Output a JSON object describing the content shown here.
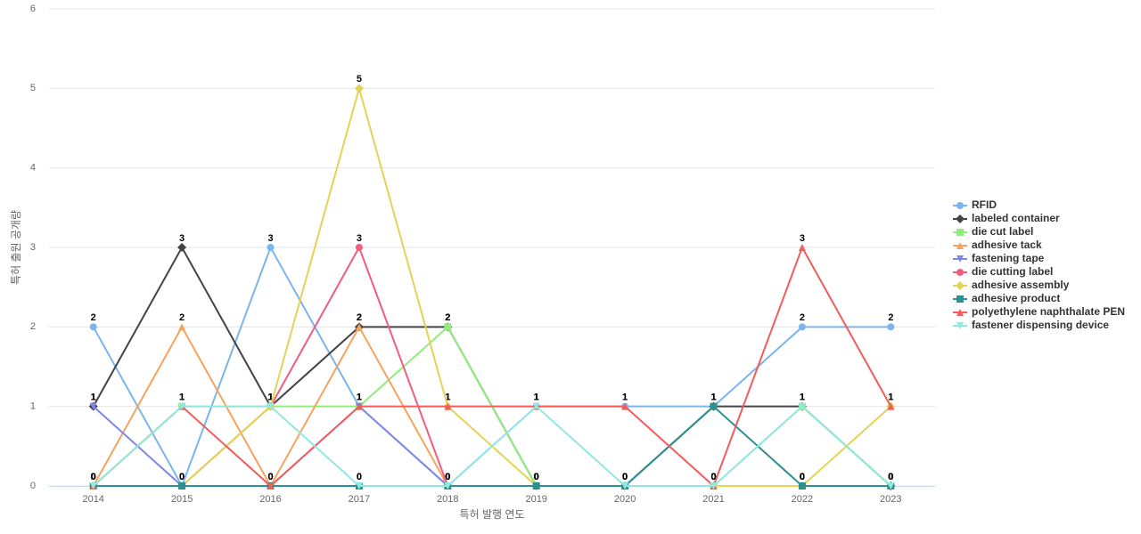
{
  "chart_data": {
    "type": "line",
    "x_label": "특허 발행 연도",
    "y_label": "특허 출원 공개량",
    "categories": [
      "2014",
      "2015",
      "2016",
      "2017",
      "2018",
      "2019",
      "2020",
      "2021",
      "2022",
      "2023"
    ],
    "ylim": [
      0,
      6
    ],
    "yticks": [
      0,
      1,
      2,
      3,
      4,
      5,
      6
    ],
    "grid": true,
    "legend": "right",
    "series": [
      {
        "name": "RFID",
        "color": "#7cb5ec",
        "marker": "circle",
        "values": [
          2,
          0,
          3,
          1,
          0,
          1,
          1,
          1,
          2,
          2
        ]
      },
      {
        "name": "labeled container",
        "color": "#434348",
        "marker": "diamond",
        "values": [
          1,
          3,
          1,
          2,
          2,
          0,
          0,
          1,
          1,
          0
        ]
      },
      {
        "name": "die cut label",
        "color": "#90ed7d",
        "marker": "square",
        "values": [
          0,
          1,
          1,
          1,
          2,
          0,
          0,
          0,
          1,
          0
        ]
      },
      {
        "name": "adhesive tack",
        "color": "#f7a35c",
        "marker": "triangle",
        "values": [
          0,
          2,
          0,
          2,
          0,
          0,
          0,
          0,
          0,
          0
        ]
      },
      {
        "name": "fastening tape",
        "color": "#8085e9",
        "marker": "triangle-down",
        "values": [
          1,
          0,
          0,
          1,
          0,
          0,
          0,
          0,
          0,
          0
        ]
      },
      {
        "name": "die cutting label",
        "color": "#f15c80",
        "marker": "circle",
        "values": [
          0,
          0,
          1,
          3,
          0,
          0,
          0,
          0,
          0,
          0
        ]
      },
      {
        "name": "adhesive assembly",
        "color": "#e4d354",
        "marker": "diamond",
        "values": [
          0,
          0,
          1,
          5,
          1,
          0,
          0,
          0,
          0,
          1
        ]
      },
      {
        "name": "adhesive product",
        "color": "#2b908f",
        "marker": "square",
        "values": [
          0,
          0,
          0,
          0,
          0,
          0,
          0,
          1,
          0,
          0
        ]
      },
      {
        "name": "polyethylene naphthalate PEN",
        "color": "#f45b5b",
        "marker": "triangle",
        "values": [
          0,
          1,
          0,
          1,
          1,
          1,
          1,
          0,
          3,
          1
        ]
      },
      {
        "name": "fastener dispensing device",
        "color": "#91e8e1",
        "marker": "triangle-down",
        "values": [
          0,
          1,
          1,
          0,
          0,
          1,
          0,
          0,
          1,
          0
        ]
      }
    ]
  }
}
